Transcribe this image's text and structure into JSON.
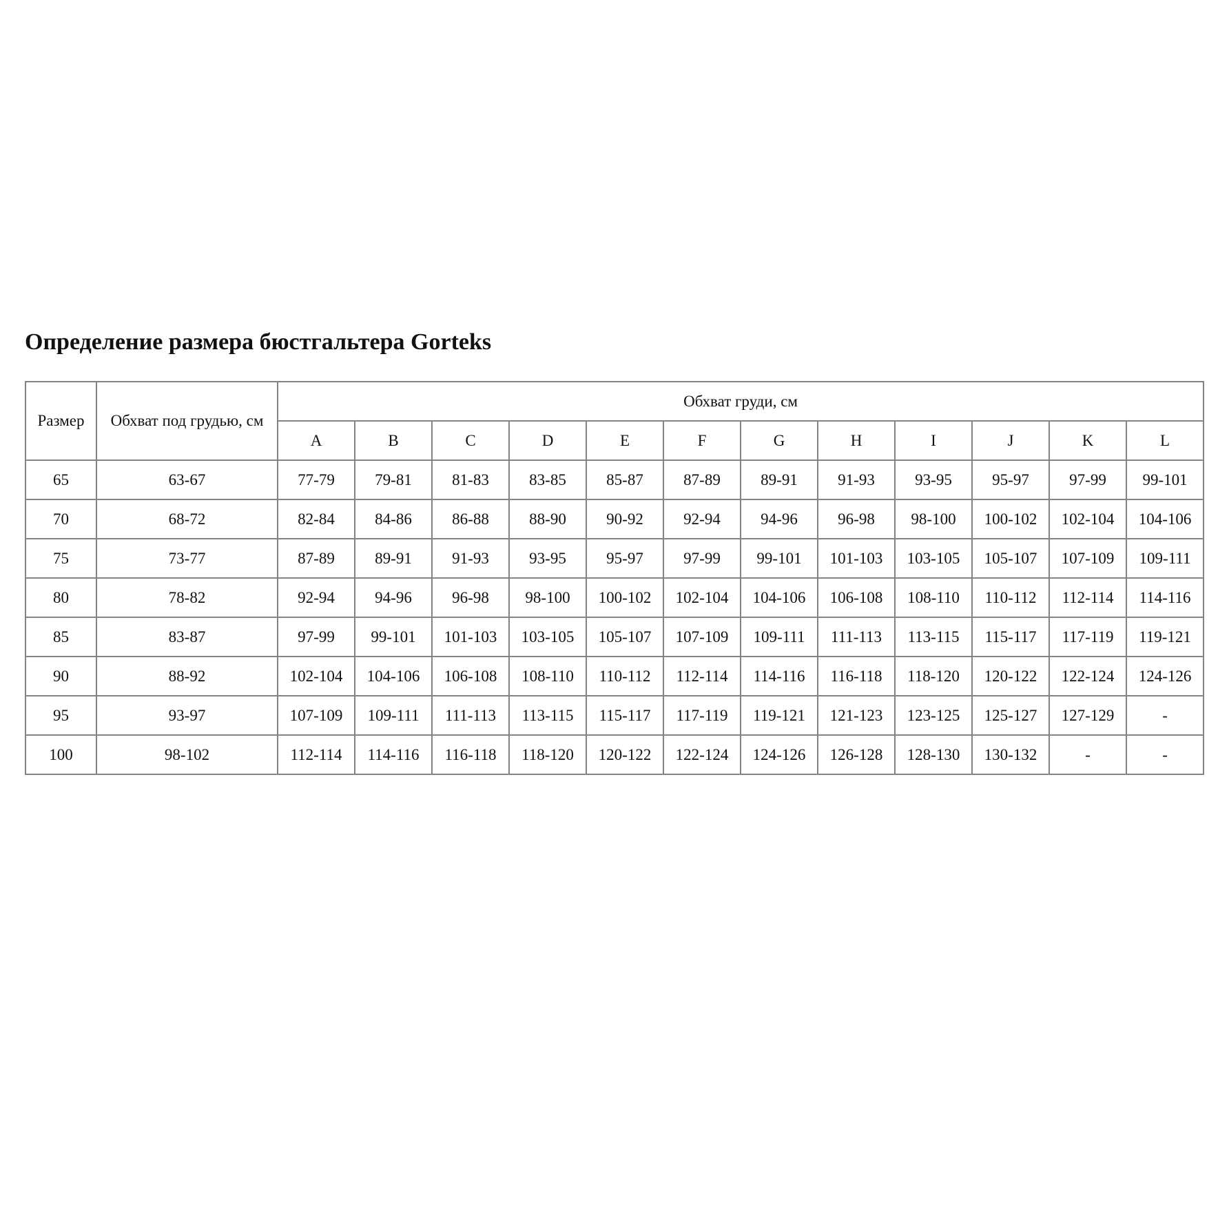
{
  "title": "Определение размера бюстгальтера Gorteks",
  "table": {
    "headers": {
      "size": "Размер",
      "underbust": "Обхват под грудью, см",
      "bust": "Обхват груди, см",
      "cups": [
        "A",
        "B",
        "C",
        "D",
        "E",
        "F",
        "G",
        "H",
        "I",
        "J",
        "K",
        "L"
      ]
    },
    "rows": [
      {
        "size": "65",
        "underbust": "63-67",
        "bust": [
          "77-79",
          "79-81",
          "81-83",
          "83-85",
          "85-87",
          "87-89",
          "89-91",
          "91-93",
          "93-95",
          "95-97",
          "97-99",
          "99-101"
        ]
      },
      {
        "size": "70",
        "underbust": "68-72",
        "bust": [
          "82-84",
          "84-86",
          "86-88",
          "88-90",
          "90-92",
          "92-94",
          "94-96",
          "96-98",
          "98-100",
          "100-102",
          "102-104",
          "104-106"
        ]
      },
      {
        "size": "75",
        "underbust": "73-77",
        "bust": [
          "87-89",
          "89-91",
          "91-93",
          "93-95",
          "95-97",
          "97-99",
          "99-101",
          "101-103",
          "103-105",
          "105-107",
          "107-109",
          "109-111"
        ]
      },
      {
        "size": "80",
        "underbust": "78-82",
        "bust": [
          "92-94",
          "94-96",
          "96-98",
          "98-100",
          "100-102",
          "102-104",
          "104-106",
          "106-108",
          "108-110",
          "110-112",
          "112-114",
          "114-116"
        ]
      },
      {
        "size": "85",
        "underbust": "83-87",
        "bust": [
          "97-99",
          "99-101",
          "101-103",
          "103-105",
          "105-107",
          "107-109",
          "109-111",
          "111-113",
          "113-115",
          "115-117",
          "117-119",
          "119-121"
        ]
      },
      {
        "size": "90",
        "underbust": "88-92",
        "bust": [
          "102-104",
          "104-106",
          "106-108",
          "108-110",
          "110-112",
          "112-114",
          "114-116",
          "116-118",
          "118-120",
          "120-122",
          "122-124",
          "124-126"
        ]
      },
      {
        "size": "95",
        "underbust": "93-97",
        "bust": [
          "107-109",
          "109-111",
          "111-113",
          "113-115",
          "115-117",
          "117-119",
          "119-121",
          "121-123",
          "123-125",
          "125-127",
          "127-129",
          "-"
        ]
      },
      {
        "size": "100",
        "underbust": "98-102",
        "bust": [
          "112-114",
          "114-116",
          "116-118",
          "118-120",
          "120-122",
          "122-124",
          "124-126",
          "126-128",
          "128-130",
          "130-132",
          "-",
          "-"
        ]
      }
    ]
  }
}
